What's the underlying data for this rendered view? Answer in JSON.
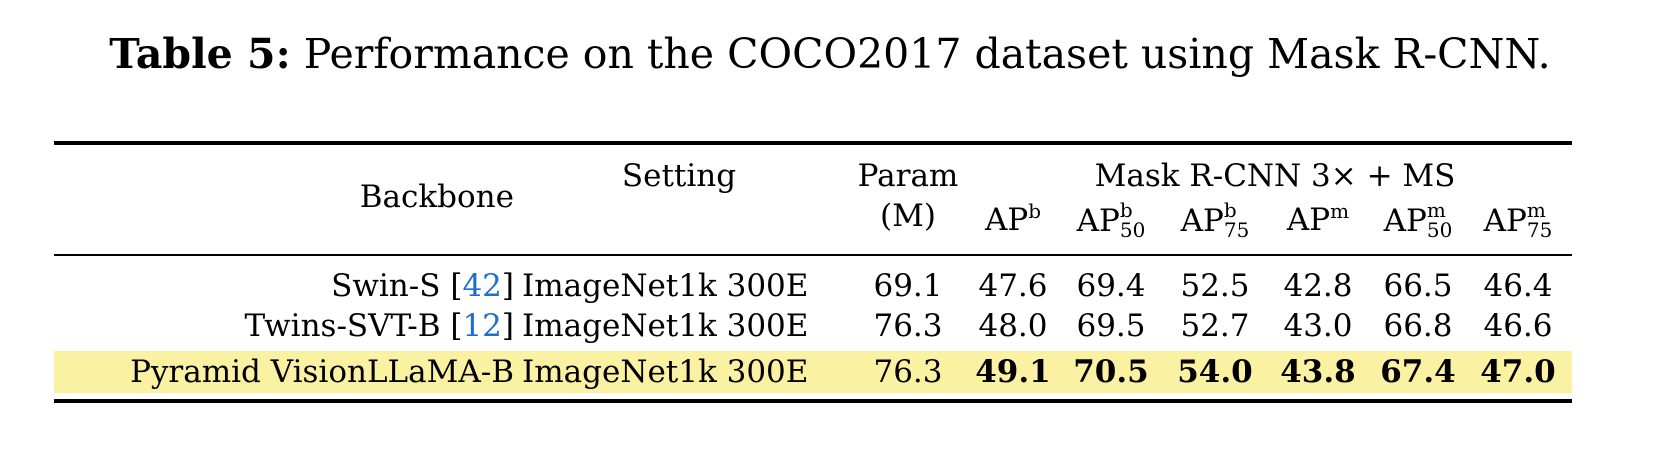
{
  "caption": {
    "label": "Table 5:",
    "text": "Performance on the COCO2017 dataset using Mask R-CNN."
  },
  "header": {
    "backbone": "Backbone",
    "setting": "Setting",
    "param_line1": "Param",
    "param_line2": "(M)",
    "group": "Mask R-CNN 3× + MS",
    "metrics": [
      {
        "base": "AP",
        "sup": "b",
        "sub": ""
      },
      {
        "base": "AP",
        "sup": "b",
        "sub": "50"
      },
      {
        "base": "AP",
        "sup": "b",
        "sub": "75"
      },
      {
        "base": "AP",
        "sup": "m",
        "sub": ""
      },
      {
        "base": "AP",
        "sup": "m",
        "sub": "50"
      },
      {
        "base": "AP",
        "sup": "m",
        "sub": "75"
      }
    ]
  },
  "rows": [
    {
      "backbone": "Swin-S",
      "ref": "42",
      "setting": "ImageNet1k 300E",
      "param": "69.1",
      "values": [
        "47.6",
        "69.4",
        "52.5",
        "42.8",
        "66.5",
        "46.4"
      ],
      "highlight": false
    },
    {
      "backbone": "Twins-SVT-B",
      "ref": "12",
      "setting": "ImageNet1k 300E",
      "param": "76.3",
      "values": [
        "48.0",
        "69.5",
        "52.7",
        "43.0",
        "66.8",
        "46.6"
      ],
      "highlight": false
    },
    {
      "backbone": "Pyramid VisionLLaMA-B",
      "ref": "",
      "setting": "ImageNet1k 300E",
      "param": "76.3",
      "values": [
        "49.1",
        "70.5",
        "54.0",
        "43.8",
        "67.4",
        "47.0"
      ],
      "highlight": true
    }
  ],
  "colors": {
    "highlight": "#fbf1a3",
    "reference_link": "#1f6fc9"
  }
}
